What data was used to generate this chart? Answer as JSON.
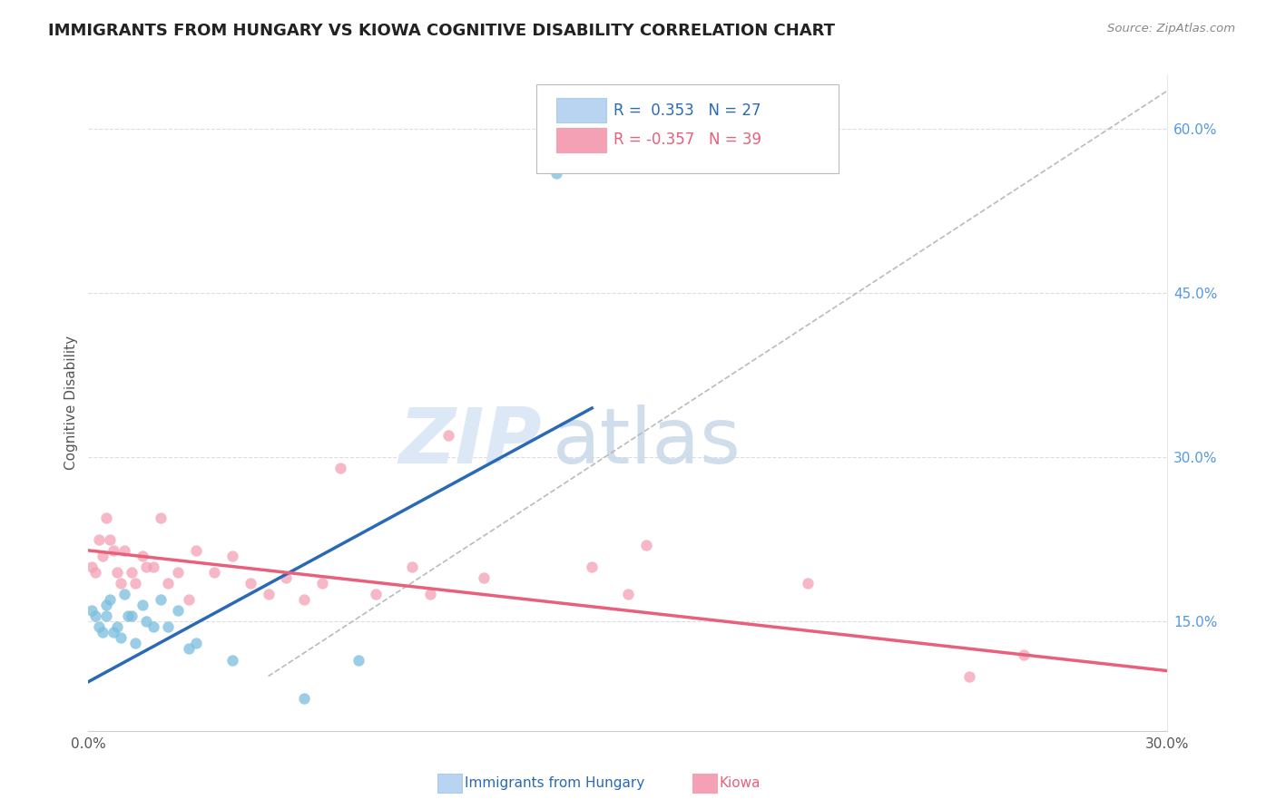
{
  "title": "IMMIGRANTS FROM HUNGARY VS KIOWA COGNITIVE DISABILITY CORRELATION CHART",
  "source": "Source: ZipAtlas.com",
  "ylabel": "Cognitive Disability",
  "legend_label1": "Immigrants from Hungary",
  "legend_label2": "Kiowa",
  "R1": 0.353,
  "N1": 27,
  "R2": -0.357,
  "N2": 39,
  "xlim": [
    0.0,
    0.3
  ],
  "ylim": [
    0.05,
    0.65
  ],
  "xticks": [
    0.0,
    0.05,
    0.1,
    0.15,
    0.2,
    0.25,
    0.3
  ],
  "xtick_labels": [
    "0.0%",
    "",
    "",
    "",
    "",
    "",
    "30.0%"
  ],
  "ytick_vals": [
    0.15,
    0.3,
    0.45,
    0.6
  ],
  "ytick_labels": [
    "15.0%",
    "30.0%",
    "45.0%",
    "60.0%"
  ],
  "color_blue": "#7bbde0",
  "color_pink": "#f4a0b5",
  "color_blue_line": "#2a6ab5",
  "color_pink_line": "#e8607a",
  "color_diag": "#bbbbbb",
  "watermark_zip": "ZIP",
  "watermark_atlas": "atlas",
  "blue_scatter_x": [
    0.001,
    0.002,
    0.003,
    0.004,
    0.005,
    0.005,
    0.006,
    0.007,
    0.008,
    0.009,
    0.01,
    0.011,
    0.012,
    0.013,
    0.015,
    0.016,
    0.018,
    0.02,
    0.022,
    0.025,
    0.028,
    0.03,
    0.04,
    0.06,
    0.075,
    0.13,
    0.135
  ],
  "blue_scatter_y": [
    0.16,
    0.155,
    0.145,
    0.14,
    0.165,
    0.155,
    0.17,
    0.14,
    0.145,
    0.135,
    0.175,
    0.155,
    0.155,
    0.13,
    0.165,
    0.15,
    0.145,
    0.17,
    0.145,
    0.16,
    0.125,
    0.13,
    0.115,
    0.08,
    0.115,
    0.56,
    0.57
  ],
  "pink_scatter_x": [
    0.001,
    0.002,
    0.003,
    0.004,
    0.005,
    0.006,
    0.007,
    0.008,
    0.009,
    0.01,
    0.012,
    0.013,
    0.015,
    0.016,
    0.018,
    0.02,
    0.022,
    0.025,
    0.028,
    0.03,
    0.035,
    0.04,
    0.045,
    0.05,
    0.055,
    0.06,
    0.065,
    0.07,
    0.08,
    0.09,
    0.095,
    0.1,
    0.11,
    0.14,
    0.15,
    0.155,
    0.2,
    0.245,
    0.26
  ],
  "pink_scatter_y": [
    0.2,
    0.195,
    0.225,
    0.21,
    0.245,
    0.225,
    0.215,
    0.195,
    0.185,
    0.215,
    0.195,
    0.185,
    0.21,
    0.2,
    0.2,
    0.245,
    0.185,
    0.195,
    0.17,
    0.215,
    0.195,
    0.21,
    0.185,
    0.175,
    0.19,
    0.17,
    0.185,
    0.29,
    0.175,
    0.2,
    0.175,
    0.32,
    0.19,
    0.2,
    0.175,
    0.22,
    0.185,
    0.1,
    0.12
  ],
  "blue_line_x": [
    0.0,
    0.14
  ],
  "blue_line_y": [
    0.095,
    0.345
  ],
  "pink_line_x": [
    0.0,
    0.3
  ],
  "pink_line_y": [
    0.215,
    0.105
  ],
  "diag_line_x": [
    0.05,
    0.3
  ],
  "diag_line_y": [
    0.1,
    0.635
  ]
}
